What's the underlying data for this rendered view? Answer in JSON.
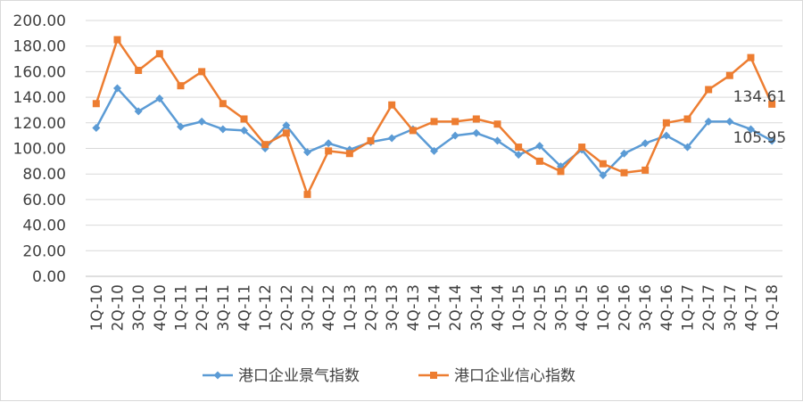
{
  "chart_data": {
    "type": "line",
    "title": "",
    "xlabel": "",
    "ylabel": "",
    "ylim": [
      0,
      200
    ],
    "y_tick_step": 20,
    "y_tick_format": "0.00",
    "grid": "horizontal",
    "legend_position": "bottom",
    "categories": [
      "1Q-10",
      "2Q-10",
      "3Q-10",
      "4Q-10",
      "1Q-11",
      "2Q-11",
      "3Q-11",
      "4Q-11",
      "1Q-12",
      "2Q-12",
      "3Q-12",
      "4Q-12",
      "1Q-13",
      "2Q-13",
      "3Q-13",
      "4Q-13",
      "1Q-14",
      "2Q-14",
      "3Q-14",
      "4Q-14",
      "1Q-15",
      "2Q-15",
      "3Q-15",
      "4Q-15",
      "1Q-16",
      "2Q-16",
      "3Q-16",
      "4Q-16",
      "1Q-17",
      "2Q-17",
      "3Q-17",
      "4Q-17",
      "1Q-18"
    ],
    "series": [
      {
        "name": "港口企业景气指数",
        "color": "#5b9bd5",
        "marker": "diamond",
        "values": [
          116,
          147,
          129,
          139,
          117,
          121,
          115,
          114,
          100,
          118,
          97,
          104,
          99,
          105,
          108,
          115,
          98,
          110,
          112,
          106,
          95,
          102,
          86,
          99,
          79,
          96,
          104,
          110,
          101,
          121,
          121,
          115,
          105.95
        ],
        "end_label": "105.95"
      },
      {
        "name": "港口企业信心指数",
        "color": "#ed7d31",
        "marker": "square",
        "values": [
          135,
          185,
          161,
          174,
          149,
          160,
          135,
          123,
          103,
          112,
          64,
          98,
          96,
          106,
          134,
          114,
          121,
          121,
          123,
          119,
          101,
          90,
          82,
          101,
          88,
          81,
          83,
          120,
          123,
          146,
          157,
          171,
          134.61
        ],
        "end_label": "134.61"
      }
    ]
  }
}
